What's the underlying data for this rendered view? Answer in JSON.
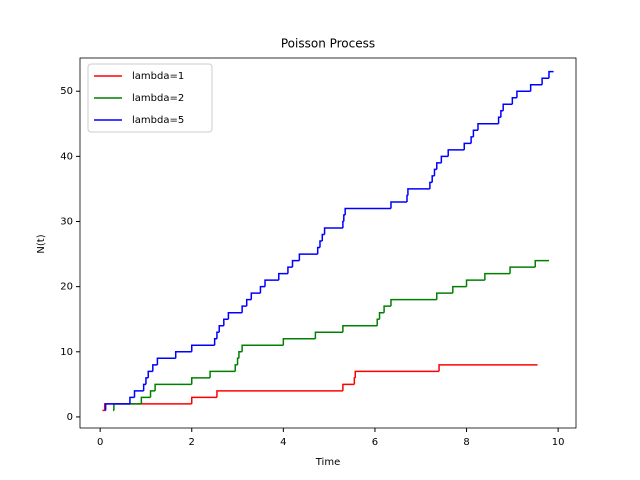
{
  "chart_data": {
    "type": "step",
    "title": "Poisson Process",
    "x_label": "Time",
    "y_label": "N(t)",
    "xlim": [
      -0.44,
      10.39
    ],
    "ylim": [
      -1.7,
      55.1
    ],
    "xticks": [
      0,
      2,
      4,
      6,
      8,
      10
    ],
    "yticks": [
      0,
      10,
      20,
      30,
      40,
      50
    ],
    "legend": "upper left",
    "series": [
      {
        "name": "lambda=1",
        "color": "#ff0000",
        "x": [
          0.05,
          0.1,
          2.0,
          2.55,
          5.3,
          5.55,
          5.57,
          7.4,
          9.55
        ],
        "values": [
          1,
          2,
          3,
          4,
          5,
          6,
          7,
          8,
          8
        ]
      },
      {
        "name": "lambda=2",
        "color": "#008000",
        "x": [
          0.28,
          0.3,
          0.9,
          1.1,
          1.2,
          2.0,
          2.4,
          2.95,
          3.0,
          3.03,
          3.1,
          4.0,
          4.7,
          5.3,
          6.05,
          6.1,
          6.2,
          6.35,
          7.35,
          7.7,
          8.0,
          8.4,
          8.95,
          9.5,
          9.8
        ],
        "values": [
          1,
          2,
          3,
          4,
          5,
          6,
          7,
          8,
          9,
          10,
          11,
          12,
          13,
          14,
          15,
          16,
          17,
          18,
          19,
          20,
          21,
          22,
          23,
          24,
          24
        ]
      },
      {
        "name": "lambda=5",
        "color": "#0000ff",
        "x": [
          0.1,
          0.12,
          0.65,
          0.75,
          0.95,
          1.0,
          1.05,
          1.15,
          1.25,
          1.65,
          2.0,
          2.5,
          2.55,
          2.6,
          2.7,
          2.8,
          3.1,
          3.2,
          3.3,
          3.5,
          3.6,
          3.9,
          4.1,
          4.2,
          4.35,
          4.75,
          4.8,
          4.85,
          4.9,
          5.3,
          5.32,
          5.35,
          6.35,
          6.7,
          6.72,
          7.2,
          7.25,
          7.3,
          7.35,
          7.45,
          7.6,
          7.95,
          8.1,
          8.15,
          8.25,
          8.7,
          8.75,
          8.8,
          9.0,
          9.1,
          9.4,
          9.65,
          9.8,
          9.9
        ],
        "values": [
          1,
          2,
          3,
          4,
          5,
          6,
          7,
          8,
          9,
          10,
          11,
          12,
          13,
          14,
          15,
          16,
          17,
          18,
          19,
          20,
          21,
          22,
          23,
          24,
          25,
          26,
          27,
          28,
          29,
          30,
          31,
          32,
          33,
          34,
          35,
          36,
          37,
          38,
          39,
          40,
          41,
          42,
          43,
          44,
          45,
          46,
          47,
          48,
          49,
          50,
          51,
          52,
          53,
          53
        ]
      }
    ]
  }
}
